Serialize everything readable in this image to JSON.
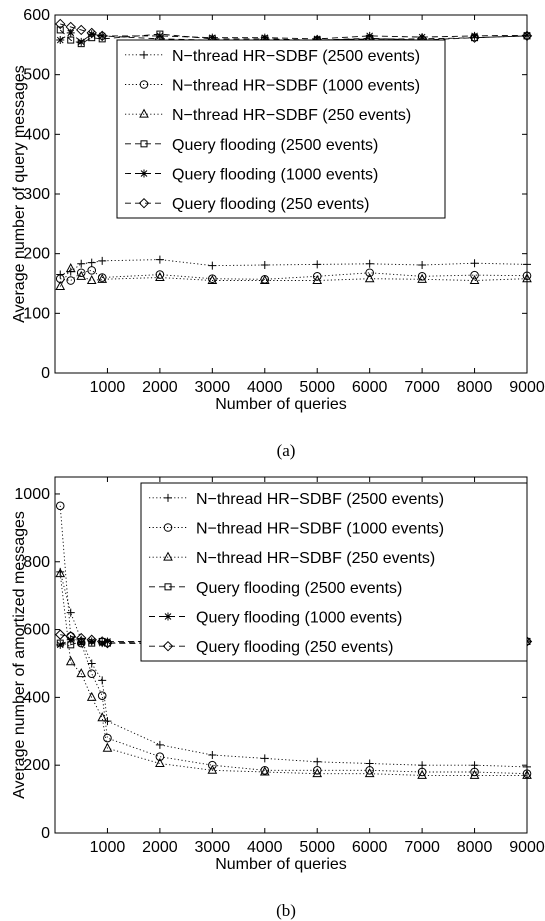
{
  "chart_data": [
    {
      "type": "line",
      "caption": "(a)",
      "xlabel": "Number of queries",
      "ylabel": "Average number of query messages",
      "xlim": [
        0,
        9000
      ],
      "ylim": [
        0,
        600
      ],
      "xticks": [
        1000,
        2000,
        3000,
        4000,
        5000,
        6000,
        7000,
        8000,
        9000
      ],
      "yticks": [
        0,
        100,
        200,
        300,
        400,
        500,
        600
      ],
      "grid": false,
      "legend": "top-center",
      "x": [
        100,
        300,
        500,
        700,
        900,
        2000,
        3000,
        4000,
        5000,
        6000,
        7000,
        8000,
        9000
      ],
      "series": [
        {
          "name": "N−thread HR−SDBF (2500 events)",
          "style": "dotted",
          "marker": "plus",
          "values": [
            165,
            170,
            183,
            185,
            188,
            190,
            180,
            181,
            182,
            183,
            181,
            184,
            182
          ]
        },
        {
          "name": "N−thread HR−SDBF (1000 events)",
          "style": "dotted",
          "marker": "circle",
          "values": [
            158,
            155,
            168,
            172,
            160,
            165,
            158,
            157,
            162,
            168,
            162,
            164,
            163
          ]
        },
        {
          "name": "N−thread HR−SDBF (250 events)",
          "style": "dotted",
          "marker": "triangle",
          "values": [
            145,
            175,
            162,
            155,
            157,
            160,
            155,
            155,
            155,
            158,
            157,
            155,
            158
          ]
        },
        {
          "name": "Query flooding (2500 events)",
          "style": "dashed",
          "marker": "square",
          "values": [
            575,
            558,
            552,
            562,
            560,
            568,
            560,
            560,
            558,
            561,
            558,
            562,
            565
          ]
        },
        {
          "name": "Query flooding (1000 events)",
          "style": "dashed",
          "marker": "asterisk",
          "values": [
            558,
            570,
            555,
            568,
            565,
            565,
            562,
            562,
            560,
            565,
            563,
            565,
            566
          ]
        },
        {
          "name": "Query flooding (250 events)",
          "style": "dashed",
          "marker": "diamond",
          "values": [
            585,
            580,
            575,
            570,
            565,
            560,
            558,
            558,
            558,
            560,
            560,
            562,
            565
          ]
        }
      ]
    },
    {
      "type": "line",
      "caption": "(b)",
      "xlabel": "Number of queries",
      "ylabel": "Average number of amortized messages",
      "xlim": [
        0,
        9000
      ],
      "ylim": [
        0,
        1050
      ],
      "xticks": [
        1000,
        2000,
        3000,
        4000,
        5000,
        6000,
        7000,
        8000,
        9000
      ],
      "yticks": [
        0,
        200,
        400,
        600,
        800,
        1000
      ],
      "grid": false,
      "legend": "top-right",
      "x": [
        100,
        300,
        500,
        700,
        900,
        1000,
        2000,
        3000,
        4000,
        5000,
        6000,
        7000,
        8000,
        9000
      ],
      "series": [
        {
          "name": "N−thread HR−SDBF (2500 events)",
          "style": "dotted",
          "marker": "plus",
          "values": [
            770,
            650,
            570,
            500,
            450,
            330,
            260,
            230,
            220,
            210,
            205,
            200,
            200,
            195
          ]
        },
        {
          "name": "N−thread HR−SDBF (1000 events)",
          "style": "dotted",
          "marker": "circle",
          "values": [
            965,
            580,
            560,
            470,
            405,
            280,
            225,
            200,
            185,
            185,
            185,
            180,
            180,
            175
          ]
        },
        {
          "name": "N−thread HR−SDBF (250 events)",
          "style": "dotted",
          "marker": "triangle",
          "values": [
            765,
            505,
            470,
            400,
            340,
            250,
            205,
            185,
            180,
            175,
            175,
            170,
            170,
            170
          ]
        },
        {
          "name": "Query flooding (2500 events)",
          "style": "dashed",
          "marker": "square",
          "values": [
            560,
            555,
            565,
            560,
            565,
            560,
            565,
            560,
            560,
            560,
            562,
            558,
            562,
            565
          ]
        },
        {
          "name": "Query flooding (1000 events)",
          "style": "dashed",
          "marker": "asterisk",
          "values": [
            555,
            570,
            560,
            565,
            560,
            565,
            565,
            562,
            560,
            560,
            565,
            563,
            565,
            566
          ]
        },
        {
          "name": "Query flooding (250 events)",
          "style": "dashed",
          "marker": "diamond",
          "values": [
            585,
            580,
            575,
            570,
            565,
            560,
            558,
            558,
            558,
            558,
            560,
            560,
            562,
            565
          ]
        }
      ]
    }
  ]
}
